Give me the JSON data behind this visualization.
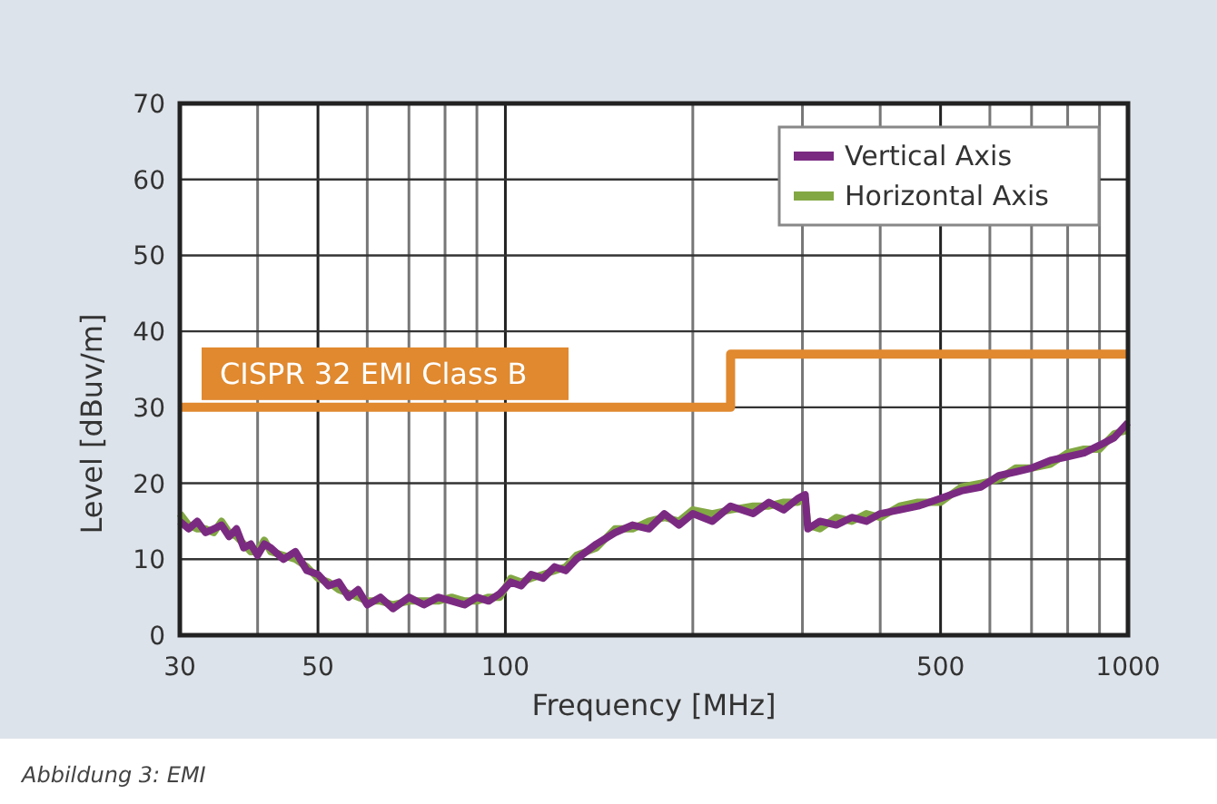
{
  "chart_data": {
    "type": "line",
    "xlabel": "Frequency [MHz]",
    "ylabel": "Level [dBuv/m]",
    "log": "x",
    "xlim": [
      30,
      1000
    ],
    "xticks": [
      30,
      {
        "value": 40,
        "label": null
      },
      50,
      {
        "value": 60,
        "label": null
      },
      {
        "value": 70,
        "label": null
      },
      {
        "value": 80,
        "label": null
      },
      {
        "value": 90,
        "label": null
      },
      100,
      {
        "value": 200,
        "label": null
      },
      {
        "value": 300,
        "label": null
      },
      {
        "value": 400,
        "label": null
      },
      500,
      {
        "value": 600,
        "label": null
      },
      {
        "value": 700,
        "label": null
      },
      {
        "value": 800,
        "label": null
      },
      {
        "value": 900,
        "label": null
      },
      1000
    ],
    "ylim": [
      0,
      70
    ],
    "yticks": [
      0,
      10,
      20,
      30,
      40,
      50,
      60,
      70
    ],
    "grid": true,
    "legend": "top right",
    "x": [
      30,
      31,
      32,
      33,
      34,
      35,
      36,
      37,
      38,
      39,
      40,
      41,
      42,
      44,
      46,
      48,
      50,
      52,
      54,
      56,
      58,
      60,
      63,
      66,
      70,
      74,
      78,
      82,
      86,
      90,
      94,
      98,
      102,
      106,
      110,
      115,
      120,
      125,
      130,
      140,
      150,
      160,
      170,
      180,
      190,
      200,
      215,
      230,
      250,
      265,
      280,
      295,
      303,
      306,
      320,
      340,
      360,
      380,
      400,
      430,
      460,
      500,
      540,
      580,
      620,
      660,
      700,
      750,
      800,
      850,
      900,
      950,
      1000
    ],
    "series": [
      {
        "name": "Horizontal Axis",
        "color": "#82a844",
        "values": [
          16,
          14.5,
          14,
          14,
          13.5,
          15,
          13.5,
          13,
          12,
          11,
          11,
          12.5,
          11,
          10.5,
          10,
          9,
          7.5,
          7,
          6,
          5.5,
          5,
          4.5,
          4.5,
          4,
          4.5,
          4.5,
          4.5,
          5,
          4.5,
          4.5,
          5,
          5,
          7.5,
          7,
          7.5,
          8,
          8.5,
          9,
          10.5,
          11.5,
          14,
          14,
          15,
          15.5,
          15,
          16.5,
          16,
          16.5,
          17,
          17,
          17.5,
          17.5,
          18,
          14.5,
          14,
          15.5,
          15,
          16,
          15.5,
          17,
          17.5,
          17.5,
          19.5,
          20,
          20.5,
          22,
          22,
          22.5,
          24,
          24.5,
          24.5,
          26.5,
          27
        ]
      },
      {
        "name": "Vertical Axis",
        "color": "#7b2a82",
        "values": [
          15,
          14,
          15,
          13.5,
          14,
          14.5,
          13,
          14,
          11.5,
          12,
          10.5,
          12,
          11.5,
          10,
          11,
          8.5,
          8,
          6.5,
          7,
          5,
          6,
          4,
          5,
          3.5,
          5,
          4,
          5,
          4.5,
          4,
          5,
          4.5,
          5.5,
          7,
          6.5,
          8,
          7.5,
          9,
          8.5,
          10,
          12,
          13.5,
          14.5,
          14,
          16,
          14.5,
          16,
          15,
          17,
          16,
          17.5,
          16.5,
          18,
          18.5,
          14,
          15,
          14.5,
          15.5,
          15,
          16,
          16.5,
          17,
          18,
          19,
          19.5,
          21,
          21.5,
          22,
          23,
          23.5,
          24,
          25,
          26,
          28
        ]
      },
      {
        "name": "CISPR 32 EMI Class B",
        "type": "step",
        "color": "#e0892f",
        "x": [
          30,
          230,
          1000
        ],
        "values": [
          30,
          37,
          37
        ]
      }
    ],
    "annotations": [
      "Abbildung 3: EMI"
    ]
  }
}
